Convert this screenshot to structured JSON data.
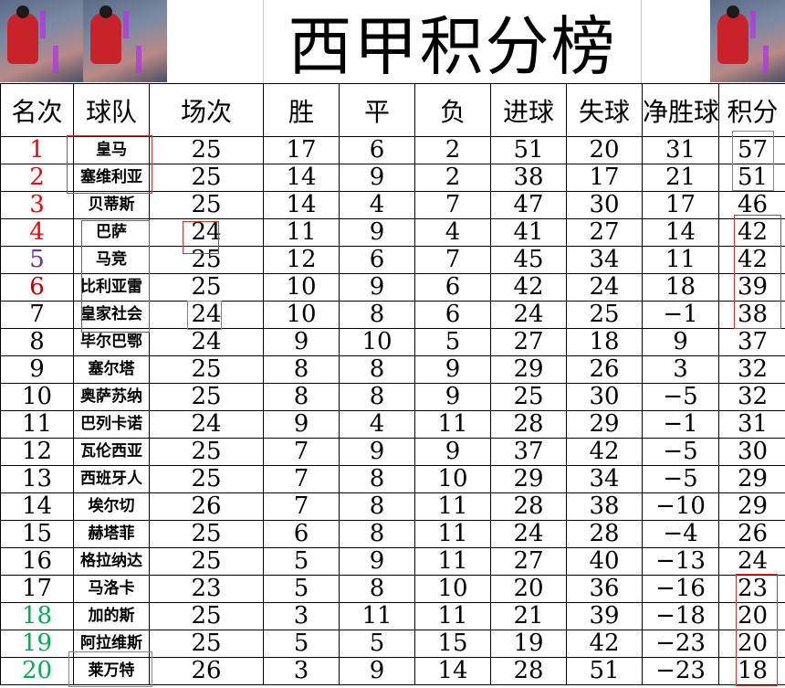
{
  "title": "西甲积分榜",
  "columns": [
    "名次",
    "球队",
    "场次",
    "胜",
    "平",
    "负",
    "进球",
    "失球",
    "净胜球",
    "积分"
  ],
  "colors": {
    "red": "#ff0000",
    "dark_red": "#c00000",
    "purple": "#7030a0",
    "black": "#000000",
    "green": "#00b050"
  },
  "rows": [
    {
      "rank": "1",
      "team": "皇马",
      "played": "25",
      "w": "17",
      "d": "6",
      "l": "2",
      "gf": "51",
      "ga": "20",
      "gd": "31",
      "pts": "57",
      "color": "#ff0000"
    },
    {
      "rank": "2",
      "team": "塞维利亚",
      "played": "25",
      "w": "14",
      "d": "9",
      "l": "2",
      "gf": "38",
      "ga": "17",
      "gd": "21",
      "pts": "51",
      "color": "#ff0000"
    },
    {
      "rank": "3",
      "team": "贝蒂斯",
      "played": "25",
      "w": "14",
      "d": "4",
      "l": "7",
      "gf": "47",
      "ga": "30",
      "gd": "17",
      "pts": "46",
      "color": "#ff0000"
    },
    {
      "rank": "4",
      "team": "巴萨",
      "played": "24",
      "w": "11",
      "d": "9",
      "l": "4",
      "gf": "41",
      "ga": "27",
      "gd": "14",
      "pts": "42",
      "color": "#ff0000"
    },
    {
      "rank": "5",
      "team": "马竞",
      "played": "25",
      "w": "12",
      "d": "6",
      "l": "7",
      "gf": "45",
      "ga": "34",
      "gd": "11",
      "pts": "42",
      "color": "#7030a0"
    },
    {
      "rank": "6",
      "team": "比利亚雷",
      "played": "25",
      "w": "10",
      "d": "9",
      "l": "6",
      "gf": "42",
      "ga": "24",
      "gd": "18",
      "pts": "39",
      "color": "#c00000"
    },
    {
      "rank": "7",
      "team": "皇家社会",
      "played": "24",
      "w": "10",
      "d": "8",
      "l": "6",
      "gf": "24",
      "ga": "25",
      "gd": "−1",
      "pts": "38",
      "color": "#000000"
    },
    {
      "rank": "8",
      "team": "毕尔巴鄂",
      "played": "24",
      "w": "9",
      "d": "10",
      "l": "5",
      "gf": "27",
      "ga": "18",
      "gd": "9",
      "pts": "37",
      "color": "#000000"
    },
    {
      "rank": "9",
      "team": "塞尔塔",
      "played": "25",
      "w": "8",
      "d": "8",
      "l": "9",
      "gf": "29",
      "ga": "26",
      "gd": "3",
      "pts": "32",
      "color": "#000000"
    },
    {
      "rank": "10",
      "team": "奥萨苏纳",
      "played": "25",
      "w": "8",
      "d": "8",
      "l": "9",
      "gf": "25",
      "ga": "30",
      "gd": "−5",
      "pts": "32",
      "color": "#000000"
    },
    {
      "rank": "11",
      "team": "巴列卡诺",
      "played": "24",
      "w": "9",
      "d": "4",
      "l": "11",
      "gf": "28",
      "ga": "29",
      "gd": "−1",
      "pts": "31",
      "color": "#000000"
    },
    {
      "rank": "12",
      "team": "瓦伦西亚",
      "played": "25",
      "w": "7",
      "d": "9",
      "l": "9",
      "gf": "37",
      "ga": "42",
      "gd": "−5",
      "pts": "30",
      "color": "#000000"
    },
    {
      "rank": "13",
      "team": "西班牙人",
      "played": "25",
      "w": "7",
      "d": "8",
      "l": "10",
      "gf": "29",
      "ga": "34",
      "gd": "−5",
      "pts": "29",
      "color": "#000000"
    },
    {
      "rank": "14",
      "team": "埃尔切",
      "played": "26",
      "w": "7",
      "d": "8",
      "l": "11",
      "gf": "28",
      "ga": "38",
      "gd": "−10",
      "pts": "29",
      "color": "#000000"
    },
    {
      "rank": "15",
      "team": "赫塔菲",
      "played": "25",
      "w": "6",
      "d": "8",
      "l": "11",
      "gf": "24",
      "ga": "28",
      "gd": "−4",
      "pts": "26",
      "color": "#000000"
    },
    {
      "rank": "16",
      "team": "格拉纳达",
      "played": "25",
      "w": "5",
      "d": "9",
      "l": "11",
      "gf": "27",
      "ga": "40",
      "gd": "−13",
      "pts": "24",
      "color": "#000000"
    },
    {
      "rank": "17",
      "team": "马洛卡",
      "played": "23",
      "w": "5",
      "d": "8",
      "l": "10",
      "gf": "20",
      "ga": "36",
      "gd": "−16",
      "pts": "23",
      "color": "#000000"
    },
    {
      "rank": "18",
      "team": "加的斯",
      "played": "25",
      "w": "3",
      "d": "11",
      "l": "11",
      "gf": "21",
      "ga": "39",
      "gd": "−18",
      "pts": "20",
      "color": "#00b050"
    },
    {
      "rank": "19",
      "team": "阿拉维斯",
      "played": "25",
      "w": "5",
      "d": "5",
      "l": "15",
      "gf": "19",
      "ga": "42",
      "gd": "−23",
      "pts": "20",
      "color": "#00b050"
    },
    {
      "rank": "20",
      "team": "莱万特",
      "played": "26",
      "w": "3",
      "d": "9",
      "l": "14",
      "gf": "28",
      "ga": "51",
      "gd": "−23",
      "pts": "18",
      "color": "#00b050"
    }
  ]
}
